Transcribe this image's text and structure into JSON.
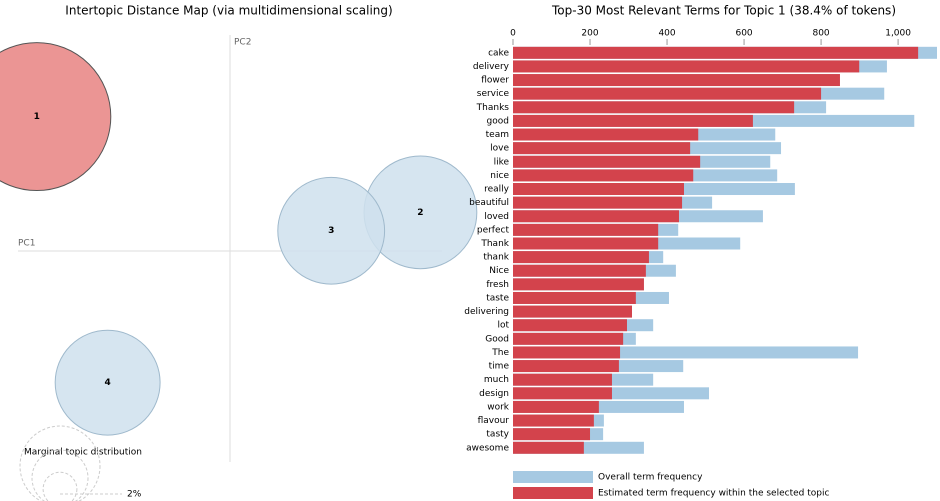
{
  "chart_data": [
    {
      "type": "bubble",
      "title": "Intertopic Distance Map (via multidimensional scaling)",
      "x_label": "PC1",
      "y_label": "PC2",
      "categories": [
        "1",
        "2",
        "3",
        "4"
      ],
      "x": [
        -0.21,
        0.207,
        0.11,
        -0.133
      ],
      "values": [
        0.146,
        0.042,
        0.022,
        -0.143
      ],
      "sizes": [
        38.4,
        22.3,
        20.0,
        19.3
      ],
      "colors": [
        "#e88381",
        "#cfe0ed",
        "#cfe0ed",
        "#cfe0ed"
      ],
      "xlim": [
        -0.25,
        0.25
      ],
      "ylim": [
        -0.24,
        0.24
      ],
      "size_legend_title": "Marginal topic distribution",
      "size_legend": [
        {
          "value": 2,
          "label": "2%"
        }
      ]
    },
    {
      "type": "hbar",
      "title": "Top-30 Most Relevant Terms for Topic 1 (38.4% of tokens)",
      "categories": [
        "cake",
        "delivery",
        "flower",
        "service",
        "Thanks",
        "good",
        "team",
        "love",
        "like",
        "nice",
        "really",
        "beautiful",
        "loved",
        "perfect",
        "Thank",
        "thank",
        "Nice",
        "fresh",
        "taste",
        "delivering",
        "lot",
        "Good",
        "The",
        "time",
        "much",
        "design",
        "work",
        "flavour",
        "tasty",
        "awesome"
      ],
      "series": [
        {
          "name": "Overall term frequency",
          "color": "#a6c9e2",
          "values": [
            1101,
            971,
            849,
            964,
            813,
            1042,
            681,
            696,
            668,
            686,
            732,
            517,
            649,
            429,
            590,
            390,
            423,
            340,
            405,
            309,
            364,
            319,
            896,
            442,
            364,
            509,
            444,
            236,
            234,
            340
          ]
        },
        {
          "name": "Estimated term frequency within the selected topic",
          "color": "#d3434c",
          "values": [
            1052,
            899,
            849,
            800,
            730,
            623,
            481,
            460,
            486,
            468,
            444,
            439,
            431,
            377,
            377,
            353,
            345,
            340,
            319,
            309,
            296,
            286,
            278,
            275,
            257,
            257,
            223,
            210,
            200,
            184
          ]
        }
      ],
      "xlim": [
        0,
        1101
      ],
      "xticks": [
        0,
        200,
        400,
        600,
        800,
        {
          "value": 1000,
          "label": "1,000"
        }
      ]
    }
  ]
}
